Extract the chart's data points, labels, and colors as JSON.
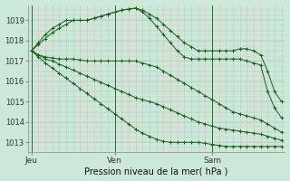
{
  "background_color": "#cce8d8",
  "grid_color_h": "#b8d4c8",
  "grid_color_v": "#e8b8b8",
  "line_color": "#1a5e1a",
  "xlabel": "Pression niveau de la mer( hPa )",
  "xtick_labels": [
    "Jeu",
    "Ven",
    "Sam"
  ],
  "ytick_min": 1013,
  "ytick_max": 1019,
  "ylim": [
    1012.5,
    1019.75
  ],
  "n_points": 37,
  "series": [
    [
      1017.5,
      1017.9,
      1018.3,
      1018.6,
      1018.8,
      1019.0,
      1019.0,
      1019.0,
      1019.0,
      1019.1,
      1019.2,
      1019.3,
      1019.4,
      1019.5,
      1019.55,
      1019.6,
      1019.5,
      1019.3,
      1019.1,
      1018.8,
      1018.5,
      1018.2,
      1017.9,
      1017.7,
      1017.5,
      1017.5,
      1017.5,
      1017.5,
      1017.5,
      1017.5,
      1017.6,
      1017.6,
      1017.5,
      1017.3,
      1016.5,
      1015.5,
      1015.0
    ],
    [
      1017.5,
      1017.8,
      1018.1,
      1018.4,
      1018.6,
      1018.8,
      1019.0,
      1019.0,
      1019.0,
      1019.1,
      1019.2,
      1019.3,
      1019.4,
      1019.5,
      1019.55,
      1019.6,
      1019.4,
      1019.1,
      1018.7,
      1018.3,
      1017.9,
      1017.5,
      1017.2,
      1017.1,
      1017.1,
      1017.1,
      1017.1,
      1017.1,
      1017.1,
      1017.1,
      1017.1,
      1017.0,
      1016.9,
      1016.8,
      1015.5,
      1014.7,
      1014.2
    ],
    [
      1017.5,
      1017.3,
      1017.2,
      1017.15,
      1017.1,
      1017.1,
      1017.1,
      1017.05,
      1017.0,
      1017.0,
      1017.0,
      1017.0,
      1017.0,
      1017.0,
      1017.0,
      1017.0,
      1016.9,
      1016.8,
      1016.7,
      1016.5,
      1016.3,
      1016.1,
      1015.9,
      1015.7,
      1015.5,
      1015.3,
      1015.1,
      1014.9,
      1014.7,
      1014.5,
      1014.4,
      1014.3,
      1014.2,
      1014.1,
      1013.9,
      1013.7,
      1013.5
    ],
    [
      1017.5,
      1017.3,
      1017.1,
      1017.0,
      1016.85,
      1016.7,
      1016.55,
      1016.4,
      1016.25,
      1016.1,
      1015.95,
      1015.8,
      1015.65,
      1015.5,
      1015.35,
      1015.2,
      1015.1,
      1015.0,
      1014.9,
      1014.75,
      1014.6,
      1014.45,
      1014.3,
      1014.15,
      1014.0,
      1013.9,
      1013.8,
      1013.7,
      1013.65,
      1013.6,
      1013.55,
      1013.5,
      1013.45,
      1013.4,
      1013.3,
      1013.2,
      1013.1
    ],
    [
      1017.5,
      1017.2,
      1016.9,
      1016.65,
      1016.4,
      1016.15,
      1015.9,
      1015.65,
      1015.4,
      1015.15,
      1014.9,
      1014.65,
      1014.4,
      1014.15,
      1013.9,
      1013.65,
      1013.45,
      1013.3,
      1013.15,
      1013.05,
      1013.0,
      1013.0,
      1013.0,
      1013.0,
      1013.0,
      1012.95,
      1012.9,
      1012.85,
      1012.8,
      1012.8,
      1012.8,
      1012.8,
      1012.8,
      1012.8,
      1012.8,
      1012.8,
      1012.8
    ]
  ]
}
